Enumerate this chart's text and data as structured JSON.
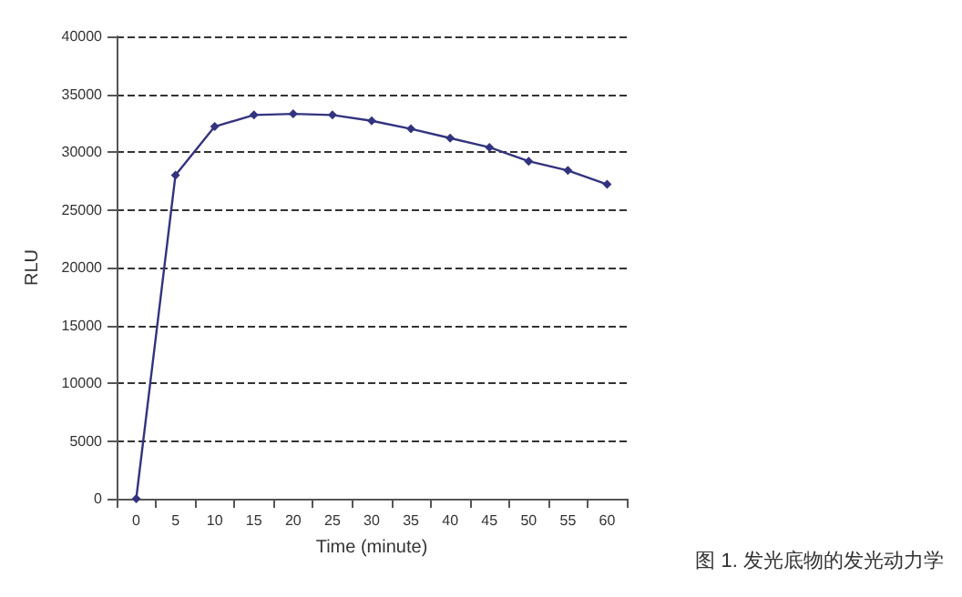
{
  "chart_data": {
    "type": "line",
    "xlabel": "Time (minute)",
    "ylabel": "RLU",
    "categories": [
      "0",
      "5",
      "10",
      "15",
      "20",
      "25",
      "30",
      "35",
      "40",
      "45",
      "50",
      "55",
      "60"
    ],
    "series": [
      {
        "color": "#33337f",
        "values": [
          0,
          28000,
          32200,
          33200,
          33300,
          33200,
          32700,
          32000,
          31200,
          30400,
          29200,
          28400,
          27200
        ]
      }
    ],
    "ylim": [
      0,
      40000
    ],
    "yticks": [
      0,
      5000,
      10000,
      15000,
      20000,
      25000,
      30000,
      35000,
      40000
    ],
    "grid": "y",
    "marker": "diamond",
    "line_style": "solid",
    "annotations": [
      "图 1. 发光底物的发光动力学"
    ]
  }
}
